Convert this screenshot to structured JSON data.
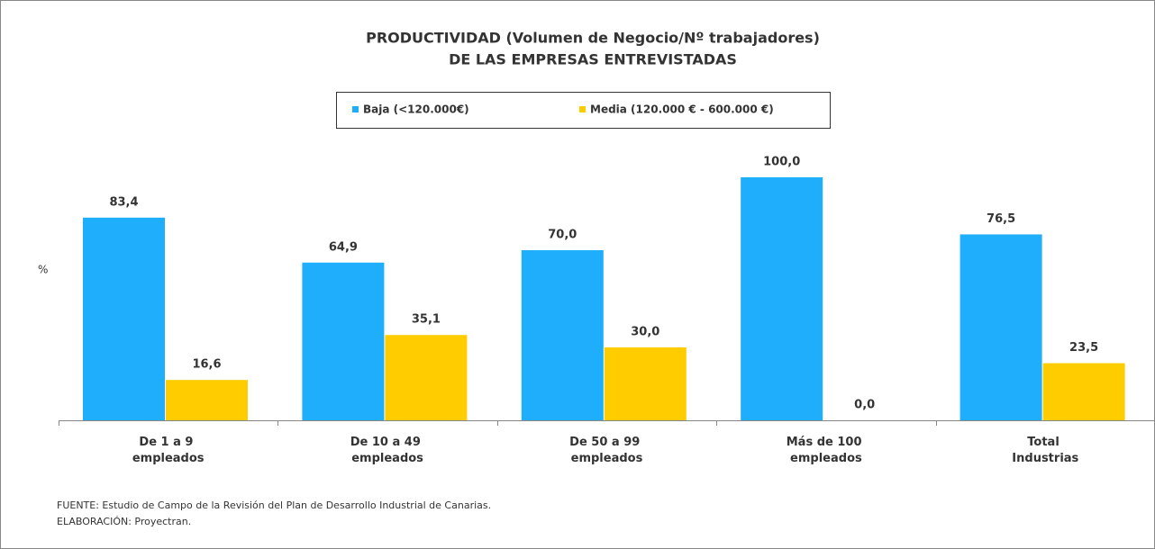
{
  "chart_data": {
    "type": "bar",
    "title": [
      "PRODUCTIVIDAD (Volumen de Negocio/Nº trabajadores)",
      "DE LAS EMPRESAS  ENTREVISTADAS"
    ],
    "ylabel": "%",
    "categories": [
      "De 1 a 9\nempleados",
      "De 10 a 49\nempleados",
      "De 50 a 99\nempleados",
      "Más de 100\nempleados",
      "Total\nIndustrias"
    ],
    "series": [
      {
        "name": "Baja (<120.000€)",
        "color": "#1eaefc",
        "values": [
          83.4,
          64.9,
          70,
          100,
          76.5
        ],
        "value_labels": [
          "83,4",
          "64,9",
          "70,0",
          "100,0",
          "76,5"
        ]
      },
      {
        "name": "Media (120.000 € - 600.000 €)",
        "color": "#ffcc00",
        "values": [
          16.6,
          35.1,
          30,
          0,
          23.5
        ],
        "value_labels": [
          "16,6",
          "35,1",
          "30,0",
          "0,0",
          "23,5"
        ]
      }
    ],
    "ylim": [
      0,
      100
    ],
    "legend": "top",
    "notes": [
      "FUENTE: Estudio de Campo de la Revisión del Plan de Desarrollo Industrial de Canarias.",
      "ELABORACIÓN: Proyectran."
    ]
  }
}
